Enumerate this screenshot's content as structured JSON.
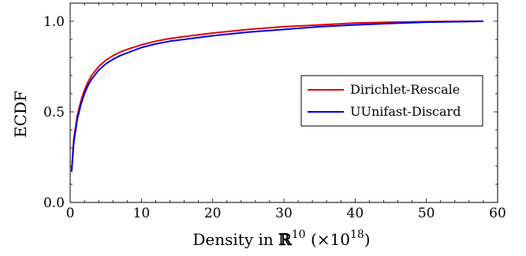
{
  "chart_data": {
    "type": "line",
    "title": "",
    "xlabel_prefix": "Density in ",
    "xlabel_bb": "ℝ",
    "xlabel_exp": "10",
    "xlabel_unit_open": " (×10",
    "xlabel_unit_exp": "18",
    "xlabel_unit_close": ")",
    "ylabel": "ECDF",
    "xlim": [
      0,
      60
    ],
    "ylim": [
      0,
      1.1
    ],
    "xticks": [
      0,
      10,
      20,
      30,
      40,
      50,
      60
    ],
    "yticks": [
      0.0,
      0.5,
      1.0
    ],
    "xtick_labels": [
      "0",
      "10",
      "20",
      "30",
      "40",
      "50",
      "60"
    ],
    "ytick_labels": [
      "0.0",
      "0.5",
      "1.0"
    ],
    "grid": false,
    "legend_position": "middle-right",
    "series": [
      {
        "name": "Dirichlet-Rescale",
        "color": "#e00000",
        "x": [
          0.2,
          0.5,
          1,
          1.5,
          2,
          2.5,
          3,
          4,
          5,
          6,
          7,
          8,
          10,
          12,
          14,
          17,
          20,
          25,
          30,
          35,
          40,
          45,
          50,
          55,
          58
        ],
        "y": [
          0.17,
          0.35,
          0.48,
          0.56,
          0.62,
          0.665,
          0.7,
          0.75,
          0.785,
          0.81,
          0.83,
          0.845,
          0.87,
          0.89,
          0.905,
          0.92,
          0.935,
          0.955,
          0.97,
          0.98,
          0.99,
          0.995,
          0.998,
          1.0,
          1.0
        ]
      },
      {
        "name": "UUnifast-Discard",
        "color": "#0000e0",
        "x": [
          0.2,
          0.5,
          1,
          1.5,
          2,
          2.5,
          3,
          4,
          5,
          6,
          7,
          8,
          10,
          12,
          14,
          17,
          20,
          25,
          30,
          35,
          40,
          45,
          50,
          55,
          58
        ],
        "y": [
          0.17,
          0.33,
          0.46,
          0.54,
          0.6,
          0.645,
          0.68,
          0.73,
          0.765,
          0.79,
          0.81,
          0.825,
          0.855,
          0.875,
          0.89,
          0.905,
          0.92,
          0.94,
          0.955,
          0.97,
          0.98,
          0.988,
          0.995,
          0.998,
          1.0
        ]
      }
    ]
  }
}
